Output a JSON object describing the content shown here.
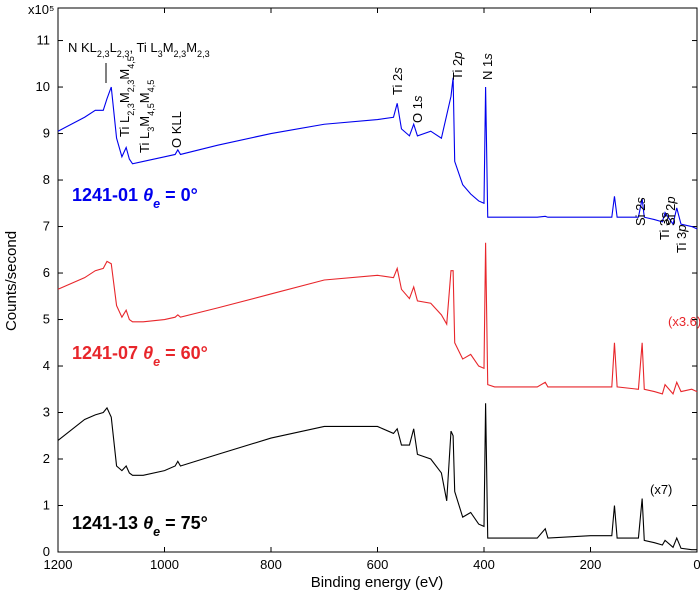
{
  "chart_data": {
    "type": "line",
    "x_label": "Binding energy (eV)",
    "y_label": "Counts/second",
    "y_multiplier": "x10⁵",
    "xlim": [
      1200,
      0
    ],
    "xticks": [
      1200,
      1000,
      800,
      600,
      400,
      200,
      0
    ],
    "ylim": [
      0,
      11.7
    ],
    "yticks": [
      0,
      1,
      2,
      3,
      4,
      5,
      6,
      7,
      8,
      9,
      10,
      11
    ],
    "x": [
      1200,
      1150,
      1130,
      1115,
      1108,
      1100,
      1090,
      1080,
      1072,
      1066,
      1060,
      1040,
      1000,
      980,
      975,
      970,
      900,
      800,
      700,
      600,
      570,
      563,
      555,
      540,
      532,
      525,
      500,
      480,
      470,
      462,
      458,
      455,
      440,
      425,
      410,
      400,
      397,
      393,
      380,
      300,
      285,
      280,
      200,
      160,
      155,
      150,
      110,
      103,
      99,
      80,
      65,
      60,
      45,
      38,
      30,
      10,
      0
    ],
    "series": [
      {
        "color": "#0000ee",
        "label_parts": [
          {
            "text": "1241-01 "
          },
          {
            "text": "θ",
            "style": "italic"
          },
          {
            "text": "e",
            "style": "italic-sub"
          },
          {
            "text": " = 0°"
          }
        ],
        "values": [
          9.05,
          9.35,
          9.5,
          9.5,
          9.75,
          10.0,
          8.9,
          8.5,
          8.7,
          8.45,
          8.35,
          8.4,
          8.5,
          8.55,
          8.65,
          8.55,
          8.75,
          9.0,
          9.2,
          9.3,
          9.35,
          9.65,
          9.1,
          8.95,
          9.2,
          8.95,
          9.05,
          8.9,
          9.4,
          9.8,
          10.2,
          8.4,
          7.9,
          7.7,
          7.55,
          7.5,
          10.0,
          7.2,
          7.2,
          7.2,
          7.22,
          7.2,
          7.2,
          7.2,
          7.65,
          7.2,
          7.2,
          7.6,
          7.2,
          7.15,
          7.1,
          7.3,
          7.05,
          7.4,
          7.05,
          7.0,
          6.95
        ]
      },
      {
        "color": "#e8262b",
        "label_parts": [
          {
            "text": "1241-07 "
          },
          {
            "text": "θ",
            "style": "italic"
          },
          {
            "text": "e",
            "style": "italic-sub"
          },
          {
            "text": " = 60°"
          }
        ],
        "values": [
          5.65,
          5.9,
          6.05,
          6.1,
          6.25,
          6.2,
          5.3,
          5.05,
          5.2,
          5.0,
          4.95,
          4.95,
          5.0,
          5.05,
          5.1,
          5.05,
          5.25,
          5.55,
          5.85,
          5.95,
          5.9,
          6.1,
          5.65,
          5.45,
          5.7,
          5.4,
          5.35,
          5.1,
          4.9,
          6.05,
          6.05,
          4.5,
          4.15,
          4.25,
          4.0,
          3.95,
          6.65,
          3.6,
          3.55,
          3.55,
          3.65,
          3.55,
          3.55,
          3.55,
          4.5,
          3.55,
          3.5,
          4.5,
          3.5,
          3.45,
          3.4,
          3.6,
          3.4,
          3.65,
          3.45,
          3.5,
          3.45
        ]
      },
      {
        "color": "#000000",
        "label_parts": [
          {
            "text": "1241-13 "
          },
          {
            "text": "θ",
            "style": "italic"
          },
          {
            "text": "e",
            "style": "italic-sub"
          },
          {
            "text": " = 75°"
          }
        ],
        "values": [
          2.4,
          2.85,
          2.95,
          3.0,
          3.1,
          2.9,
          1.85,
          1.75,
          1.85,
          1.7,
          1.65,
          1.65,
          1.75,
          1.85,
          1.95,
          1.85,
          2.1,
          2.45,
          2.7,
          2.7,
          2.55,
          2.65,
          2.3,
          2.3,
          2.65,
          2.1,
          2.0,
          1.7,
          1.1,
          2.6,
          2.5,
          1.3,
          0.75,
          0.85,
          0.6,
          0.55,
          3.2,
          0.3,
          0.3,
          0.3,
          0.5,
          0.3,
          0.35,
          0.35,
          1.0,
          0.3,
          0.3,
          1.15,
          0.25,
          0.2,
          0.15,
          0.25,
          0.1,
          0.3,
          0.08,
          0.05,
          0.05
        ]
      }
    ],
    "annotations": [
      {
        "parts": [
          {
            "text": "N KL"
          },
          {
            "text": "2,3",
            "style": "sub"
          },
          {
            "text": "L"
          },
          {
            "text": "2,3",
            "style": "sub"
          },
          {
            "text": ", Ti L"
          },
          {
            "text": "3",
            "style": "sub"
          },
          {
            "text": "M"
          },
          {
            "text": "2,3",
            "style": "sub"
          },
          {
            "text": "M"
          },
          {
            "text": "2,3",
            "style": "sub"
          }
        ]
      },
      {
        "parts": [
          {
            "text": "Ti L"
          },
          {
            "text": "2,3",
            "style": "sub"
          },
          {
            "text": "M"
          },
          {
            "text": "2,3",
            "style": "sub"
          },
          {
            "text": "M"
          },
          {
            "text": "4,5",
            "style": "sub"
          }
        ]
      },
      {
        "parts": [
          {
            "text": "Ti L"
          },
          {
            "text": "3",
            "style": "sub"
          },
          {
            "text": "M"
          },
          {
            "text": "4,5",
            "style": "sub"
          },
          {
            "text": "M"
          },
          {
            "text": "4,5",
            "style": "sub"
          }
        ]
      },
      {
        "parts": [
          {
            "text": "O KLL"
          }
        ]
      },
      {
        "parts": [
          {
            "text": "Ti 2"
          },
          {
            "text": "s",
            "style": "italic"
          }
        ]
      },
      {
        "parts": [
          {
            "text": "O 1"
          },
          {
            "text": "s",
            "style": "italic"
          }
        ]
      },
      {
        "parts": [
          {
            "text": "Ti 2"
          },
          {
            "text": "p",
            "style": "italic"
          }
        ]
      },
      {
        "parts": [
          {
            "text": "N 1"
          },
          {
            "text": "s",
            "style": "italic"
          }
        ]
      },
      {
        "parts": [
          {
            "text": "Si 2"
          },
          {
            "text": "s",
            "style": "italic"
          }
        ]
      },
      {
        "parts": [
          {
            "text": "Si 2"
          },
          {
            "text": "p",
            "style": "italic"
          }
        ]
      },
      {
        "parts": [
          {
            "text": "Ti 3"
          },
          {
            "text": "s",
            "style": "italic"
          }
        ]
      },
      {
        "parts": [
          {
            "text": "Ti 3"
          },
          {
            "text": "p",
            "style": "italic"
          }
        ]
      },
      {
        "parts": [
          {
            "text": "(x3.6)"
          }
        ],
        "color": "#e8262b"
      },
      {
        "parts": [
          {
            "text": "(x7)"
          }
        ]
      }
    ]
  }
}
